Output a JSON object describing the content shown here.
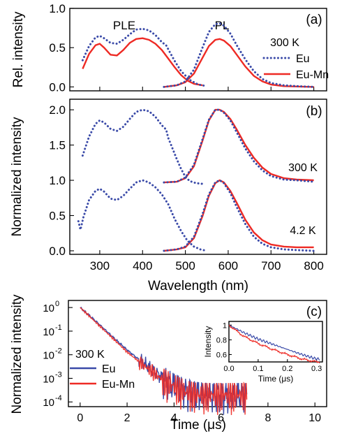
{
  "colors": {
    "eu": "#3a4aa8",
    "eumn": "#ee2a24",
    "axis": "#000000"
  },
  "chart_data": [
    {
      "id": "a",
      "type": "line",
      "panel_label": "(a)",
      "ylabel": "Rel. intensity",
      "xlim": [
        230,
        830
      ],
      "ylim": [
        -0.05,
        1.0
      ],
      "xticks": [],
      "yticks": [
        0.0,
        0.5,
        1.0
      ],
      "ytick_labels": [
        "0.0",
        "0.5",
        "1.0"
      ],
      "annotations": [
        {
          "text": "PLE"
        },
        {
          "text": "PL"
        },
        {
          "text": "300 K"
        }
      ],
      "legend": [
        "Eu",
        "Eu-Mn"
      ],
      "series": [
        {
          "name": "Eu",
          "style": "dotted",
          "segments": [
            {
              "x": [
                260,
                275,
                290,
                300,
                310,
                325,
                340,
                355,
                370,
                385,
                400,
                415,
                430,
                445,
                455,
                465,
                475,
                490,
                510,
                530,
                550
              ],
              "y": [
                0.34,
                0.52,
                0.63,
                0.65,
                0.62,
                0.56,
                0.55,
                0.6,
                0.67,
                0.73,
                0.74,
                0.72,
                0.66,
                0.57,
                0.53,
                0.43,
                0.33,
                0.2,
                0.09,
                0.03,
                0.01
              ]
            },
            {
              "x": [
                450,
                480,
                500,
                520,
                540,
                555,
                570,
                580,
                590,
                605,
                620,
                640,
                660,
                680,
                700,
                730,
                760,
                800
              ],
              "y": [
                0.0,
                0.02,
                0.07,
                0.22,
                0.5,
                0.7,
                0.8,
                0.81,
                0.78,
                0.68,
                0.53,
                0.35,
                0.2,
                0.1,
                0.05,
                0.02,
                0.01,
                0.0
              ]
            }
          ]
        },
        {
          "name": "Eu-Mn",
          "style": "solid",
          "segments": [
            {
              "x": [
                260,
                275,
                290,
                300,
                310,
                325,
                340,
                355,
                370,
                385,
                400,
                415,
                430,
                445,
                460,
                475,
                490,
                505,
                520,
                540
              ],
              "y": [
                0.23,
                0.42,
                0.53,
                0.55,
                0.5,
                0.41,
                0.4,
                0.47,
                0.56,
                0.61,
                0.62,
                0.6,
                0.55,
                0.47,
                0.36,
                0.25,
                0.15,
                0.08,
                0.04,
                0.02
              ]
            },
            {
              "x": [
                450,
                480,
                500,
                520,
                540,
                555,
                570,
                580,
                590,
                605,
                620,
                640,
                660,
                680,
                700,
                730,
                760,
                800
              ],
              "y": [
                0.0,
                0.02,
                0.06,
                0.17,
                0.37,
                0.52,
                0.6,
                0.61,
                0.59,
                0.52,
                0.41,
                0.26,
                0.14,
                0.07,
                0.03,
                0.01,
                0.005,
                0.0
              ]
            }
          ]
        }
      ]
    },
    {
      "id": "b",
      "type": "line",
      "panel_label": "(b)",
      "ylabel": "Normalized intensity",
      "xlabel": "Wavelength (nm)",
      "xlim": [
        230,
        830
      ],
      "ylim": [
        -0.05,
        2.15
      ],
      "xticks": [
        300,
        400,
        500,
        600,
        700,
        800
      ],
      "xtick_labels": [
        "300",
        "400",
        "500",
        "600",
        "700",
        "800"
      ],
      "yticks": [
        0.0,
        0.5,
        1.0,
        1.5,
        2.0
      ],
      "ytick_labels": [
        "0.0",
        "0.5",
        "1.0",
        "1.5",
        "2.0"
      ],
      "annotations": [
        {
          "text": "300 K"
        },
        {
          "text": "4.2 K"
        }
      ],
      "series": [
        {
          "name": "Eu",
          "style": "dotted",
          "segments": [
            {
              "x": [
                260,
                275,
                290,
                300,
                310,
                325,
                340,
                355,
                370,
                385,
                400,
                415,
                430,
                445,
                455,
                460,
                470,
                480,
                490,
                500,
                510,
                525,
                540
              ],
              "y": [
                1.35,
                1.62,
                1.8,
                1.85,
                1.82,
                1.73,
                1.7,
                1.76,
                1.87,
                1.97,
                2.0,
                1.98,
                1.9,
                1.78,
                1.72,
                1.6,
                1.45,
                1.3,
                1.16,
                1.05,
                0.99,
                0.96,
                0.95
              ]
            },
            {
              "x": [
                450,
                480,
                500,
                520,
                540,
                555,
                570,
                580,
                590,
                605,
                620,
                640,
                660,
                680,
                700,
                730,
                760,
                800
              ],
              "y": [
                0.97,
                0.98,
                1.04,
                1.22,
                1.58,
                1.86,
                2.0,
                2.0,
                1.96,
                1.85,
                1.68,
                1.45,
                1.27,
                1.14,
                1.06,
                1.01,
                1.0,
                0.98
              ]
            },
            {
              "x": [
                250,
                255,
                262,
                275,
                290,
                300,
                310,
                325,
                340,
                355,
                370,
                385,
                400,
                415,
                430,
                445,
                460,
                475,
                490,
                505,
                520,
                535,
                550
              ],
              "y": [
                0.42,
                0.3,
                0.48,
                0.72,
                0.85,
                0.88,
                0.84,
                0.74,
                0.72,
                0.78,
                0.88,
                0.97,
                1.0,
                0.97,
                0.9,
                0.8,
                0.66,
                0.45,
                0.28,
                0.14,
                0.06,
                0.02,
                0.0
              ]
            },
            {
              "x": [
                450,
                480,
                500,
                520,
                540,
                555,
                570,
                580,
                590,
                605,
                620,
                640,
                660,
                680,
                700,
                730,
                760,
                800
              ],
              "y": [
                0.0,
                0.02,
                0.06,
                0.2,
                0.52,
                0.8,
                0.97,
                1.0,
                0.96,
                0.82,
                0.62,
                0.38,
                0.2,
                0.1,
                0.05,
                0.02,
                0.01,
                0.0
              ]
            }
          ]
        },
        {
          "name": "Eu-Mn",
          "style": "solid",
          "segments": [
            {
              "x": [
                450,
                480,
                500,
                520,
                540,
                555,
                570,
                580,
                590,
                605,
                620,
                640,
                660,
                680,
                700,
                730,
                760,
                800
              ],
              "y": [
                0.97,
                0.98,
                1.03,
                1.2,
                1.56,
                1.85,
                2.0,
                2.0,
                1.97,
                1.87,
                1.72,
                1.5,
                1.32,
                1.18,
                1.09,
                1.03,
                1.01,
                1.0
              ]
            },
            {
              "x": [
                450,
                480,
                500,
                520,
                540,
                555,
                570,
                580,
                590,
                605,
                620,
                640,
                660,
                680,
                700,
                730,
                760,
                800
              ],
              "y": [
                0.0,
                0.02,
                0.05,
                0.18,
                0.49,
                0.78,
                0.96,
                1.0,
                0.97,
                0.85,
                0.68,
                0.44,
                0.26,
                0.15,
                0.09,
                0.06,
                0.05,
                0.05
              ]
            }
          ]
        }
      ]
    },
    {
      "id": "c",
      "type": "line",
      "panel_label": "(c)",
      "ylabel": "Normalized intensity",
      "xlabel": "Time (μs)",
      "xlim": [
        -0.5,
        10.5
      ],
      "ylim_log10": [
        -4.2,
        0.3
      ],
      "yscale": "log",
      "xticks": [
        0,
        2,
        4,
        6,
        8,
        10
      ],
      "xtick_labels": [
        "0",
        "2",
        "4",
        "6",
        "8",
        "10"
      ],
      "ytick_exponents": [
        0,
        -1,
        -2,
        -3,
        -4
      ],
      "ytick_labels": [
        "10",
        "10",
        "10",
        "10",
        "10"
      ],
      "ytick_superscripts": [
        "0",
        "-1",
        "-2",
        "-3",
        "-4"
      ],
      "annotations": [
        {
          "text": "300 K"
        }
      ],
      "legend": [
        "Eu",
        "Eu-Mn"
      ],
      "series": [
        {
          "name": "Eu",
          "style": "solid",
          "x": [
            0,
            0.5,
            1,
            1.5,
            2,
            2.5,
            3,
            3.5,
            4,
            4.5,
            5,
            5.5,
            6,
            6.5,
            7.1
          ],
          "y": [
            1.0,
            0.37,
            0.13,
            0.045,
            0.016,
            0.0063,
            0.0025,
            0.0011,
            0.0005,
            0.0003,
            0.00022,
            0.0002,
            0.0002,
            0.0002,
            0.0002
          ]
        },
        {
          "name": "Eu-Mn",
          "style": "solid",
          "x": [
            0,
            0.5,
            1,
            1.5,
            2,
            2.5,
            3,
            3.5,
            4,
            4.5,
            5,
            5.5,
            6,
            6.5,
            7.1
          ],
          "y": [
            1.0,
            0.34,
            0.115,
            0.039,
            0.013,
            0.0052,
            0.0021,
            0.0009,
            0.00045,
            0.00026,
            0.0002,
            0.0002,
            0.0002,
            0.0002,
            0.0002
          ]
        }
      ],
      "inset": {
        "type": "line",
        "ylabel": "Intensity",
        "xlabel": "Time (μs)",
        "xlim": [
          0,
          0.32
        ],
        "ylim": [
          0.5,
          1.05
        ],
        "xticks": [
          0.0,
          0.1,
          0.2,
          0.3
        ],
        "xtick_labels": [
          "0.0",
          "0.1",
          "0.2",
          "0.3"
        ],
        "yticks": [
          0.6,
          0.8,
          1.0
        ],
        "ytick_labels": [
          "0.6",
          "0.8",
          "1"
        ],
        "series": [
          {
            "name": "Eu",
            "style": "solid",
            "x": [
              0.0,
              0.05,
              0.1,
              0.15,
              0.2,
              0.25,
              0.3
            ],
            "y": [
              1.0,
              0.9,
              0.81,
              0.74,
              0.67,
              0.6,
              0.54
            ]
          },
          {
            "name": "Eu-Mn",
            "style": "solid",
            "x": [
              0.0,
              0.05,
              0.1,
              0.15,
              0.2,
              0.25,
              0.3
            ],
            "y": [
              1.0,
              0.85,
              0.75,
              0.67,
              0.6,
              0.54,
              0.5
            ]
          }
        ]
      }
    }
  ]
}
